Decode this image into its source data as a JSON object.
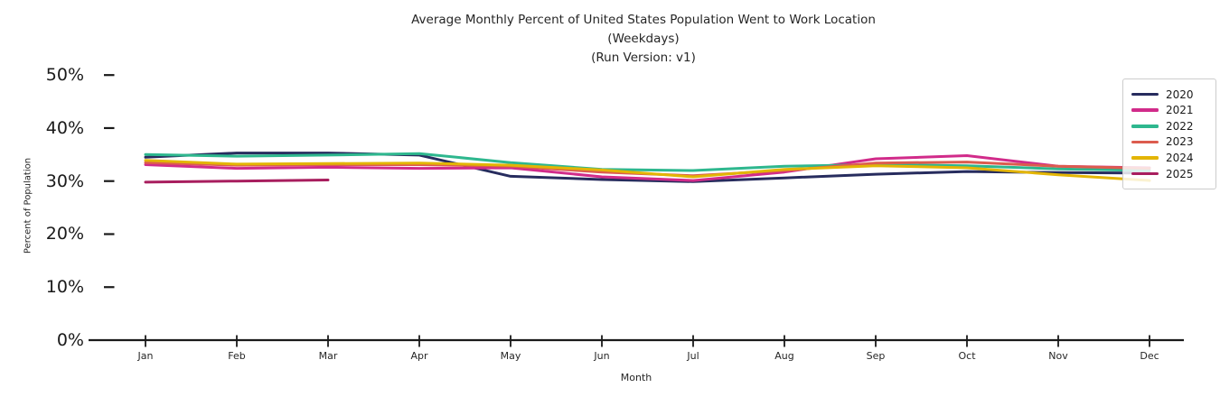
{
  "header": {
    "title_line1": "Average Monthly Percent of United States Population Went to Work Location",
    "title_line2": "(Weekdays)",
    "title_line3": "(Run Version: v1)"
  },
  "axes": {
    "x_label": "Month",
    "y_label": "Percent of Population",
    "x_ticks": [
      "Jan",
      "Feb",
      "Mar",
      "Apr",
      "May",
      "Jun",
      "Jul",
      "Aug",
      "Sep",
      "Oct",
      "Nov",
      "Dec"
    ],
    "y_ticks": [
      "0%",
      "10%",
      "20%",
      "30%",
      "40%",
      "50%"
    ],
    "y_tick_values": [
      0,
      10,
      20,
      30,
      40,
      50
    ]
  },
  "colors": {
    "axis": "#1a1a1a",
    "text": "#262626",
    "legend_border": "#cccccc",
    "background": "#ffffff"
  },
  "chart_data": {
    "type": "line",
    "title": "Average Monthly Percent of United States Population Went to Work Location (Weekdays) (Run Version: v1)",
    "xlabel": "Month",
    "ylabel": "Percent of Population",
    "categories": [
      "Jan",
      "Feb",
      "Mar",
      "Apr",
      "May",
      "Jun",
      "Jul",
      "Aug",
      "Sep",
      "Oct",
      "Nov",
      "Dec"
    ],
    "ylim": [
      0,
      52
    ],
    "y_unit": "percent",
    "grid": false,
    "legend_position": "upper right",
    "series": [
      {
        "name": "2020",
        "color": "#272c5e",
        "values": [
          34.5,
          35.3,
          35.3,
          34.9,
          30.9,
          30.3,
          29.9,
          30.6,
          31.3,
          31.8,
          31.6,
          31.5
        ]
      },
      {
        "name": "2021",
        "color": "#d12b8a",
        "values": [
          33.1,
          32.4,
          32.6,
          32.4,
          32.5,
          30.8,
          30.1,
          31.7,
          34.2,
          34.8,
          32.8,
          32.5
        ]
      },
      {
        "name": "2022",
        "color": "#2eb78e",
        "values": [
          35.0,
          34.7,
          34.9,
          35.2,
          33.5,
          32.2,
          32.0,
          32.8,
          33.1,
          32.9,
          32.3,
          32.0
        ]
      },
      {
        "name": "2023",
        "color": "#dc5c4e",
        "values": [
          33.5,
          33.0,
          33.1,
          33.1,
          32.8,
          31.7,
          31.0,
          32.0,
          33.4,
          33.6,
          32.8,
          32.4
        ]
      },
      {
        "name": "2024",
        "color": "#e3b505",
        "values": [
          33.9,
          33.2,
          33.3,
          33.4,
          33.0,
          32.1,
          30.8,
          32.2,
          32.9,
          32.5,
          31.2,
          30.1
        ]
      },
      {
        "name": "2025",
        "color": "#a81e5e",
        "values": [
          29.8,
          30.0,
          30.2
        ]
      }
    ]
  }
}
